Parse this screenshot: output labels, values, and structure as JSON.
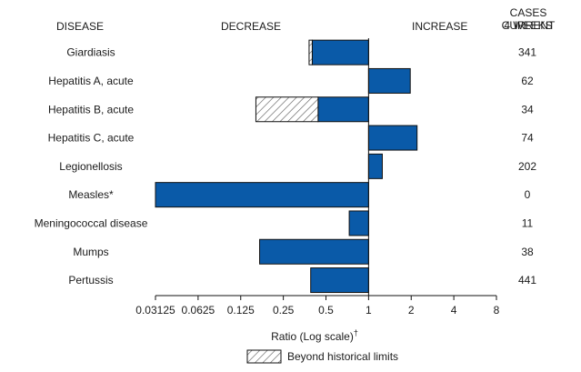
{
  "headers": {
    "disease": "DISEASE",
    "decrease": "DECREASE",
    "increase": "INCREASE",
    "cases_line1": "CASES CURRENT",
    "cases_line2": "4 WEEKS"
  },
  "chart_data": {
    "type": "bar",
    "orientation": "horizontal",
    "log_scale": true,
    "log_base": 2,
    "xlabel": "Ratio (Log scale)",
    "xlabel_mark": "†",
    "xlim": [
      0.03125,
      8
    ],
    "reference_line": 1,
    "xticks": [
      {
        "value": 0.03125,
        "label": "0.03125"
      },
      {
        "value": 0.0625,
        "label": "0.0625"
      },
      {
        "value": 0.125,
        "label": "0.125"
      },
      {
        "value": 0.25,
        "label": "0.25"
      },
      {
        "value": 0.5,
        "label": "0.5"
      },
      {
        "value": 1,
        "label": "1"
      },
      {
        "value": 2,
        "label": "2"
      },
      {
        "value": 4,
        "label": "4"
      },
      {
        "value": 8,
        "label": "8"
      }
    ],
    "legend": {
      "label": "Beyond historical limits",
      "placement": "bottom-center"
    },
    "colors": {
      "bar": "#0a5aa8",
      "bar_edge": "#111111",
      "hatch_line": "#555555"
    },
    "rows": [
      {
        "disease": "Giardiasis",
        "ratio": 0.4,
        "beyond_limit_from": 0.38,
        "cases": "341"
      },
      {
        "disease": "Hepatitis A, acute",
        "ratio": 1.97,
        "beyond_limit_from": null,
        "cases": "62"
      },
      {
        "disease": "Hepatitis B, acute",
        "ratio": 0.44,
        "beyond_limit_from": 0.16,
        "cases": "34"
      },
      {
        "disease": "Hepatitis C, acute",
        "ratio": 2.2,
        "beyond_limit_from": null,
        "cases": "74"
      },
      {
        "disease": "Legionellosis",
        "ratio": 1.25,
        "beyond_limit_from": null,
        "cases": "202"
      },
      {
        "disease": "Measles*",
        "ratio": 0.03125,
        "beyond_limit_from": null,
        "cases": "0"
      },
      {
        "disease": "Meningococcal disease",
        "ratio": 0.73,
        "beyond_limit_from": null,
        "cases": "11"
      },
      {
        "disease": "Mumps",
        "ratio": 0.17,
        "beyond_limit_from": null,
        "cases": "38"
      },
      {
        "disease": "Pertussis",
        "ratio": 0.39,
        "beyond_limit_from": null,
        "cases": "441"
      }
    ]
  }
}
